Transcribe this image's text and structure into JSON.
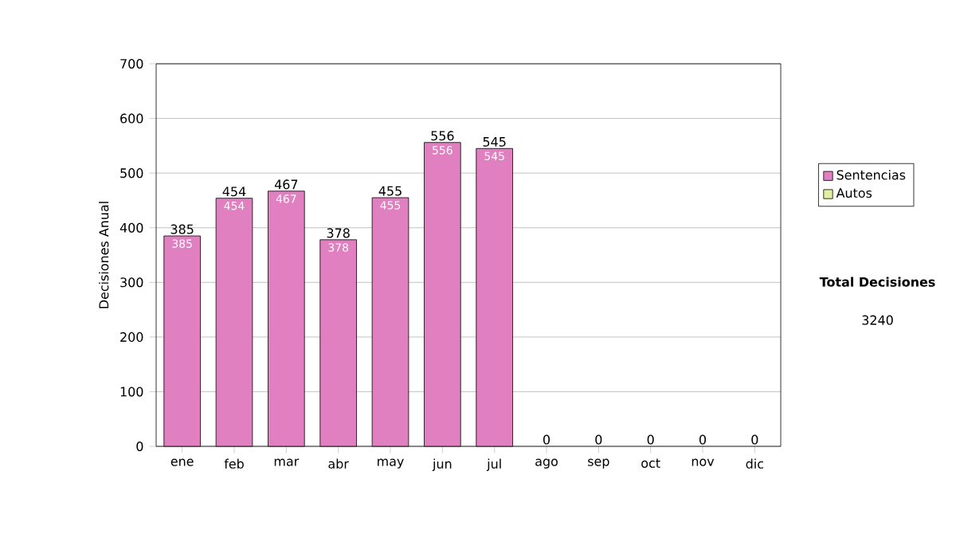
{
  "chart_data": {
    "type": "bar",
    "stacked": true,
    "ylabel": "Decisiones Anual",
    "categories": [
      "ene",
      "feb",
      "mar",
      "abr",
      "may",
      "jun",
      "jul",
      "ago",
      "sep",
      "oct",
      "nov",
      "dic"
    ],
    "series": [
      {
        "name": "Sentencias",
        "color": "#e080c0",
        "values": [
          385,
          454,
          467,
          378,
          455,
          556,
          545,
          0,
          0,
          0,
          0,
          0
        ],
        "value_labels": [
          "385",
          "454",
          "467",
          "378",
          "455",
          "556",
          "545",
          null,
          null,
          null,
          null,
          null
        ]
      },
      {
        "name": "Autos",
        "color": "#e0f0a0",
        "values": [
          0,
          0,
          0,
          0,
          0,
          0,
          0,
          0,
          0,
          0,
          0,
          0
        ]
      }
    ],
    "totals": [
      "385",
      "454",
      "467",
      "378",
      "455",
      "556",
      "545",
      "0",
      "0",
      "0",
      "0",
      "0"
    ],
    "ylim": [
      0,
      700
    ],
    "yticks": [
      0,
      100,
      200,
      300,
      400,
      500,
      600,
      700
    ],
    "grid": "y",
    "legend": "right",
    "annotations": [
      "Total Decisiones",
      "3240"
    ]
  }
}
